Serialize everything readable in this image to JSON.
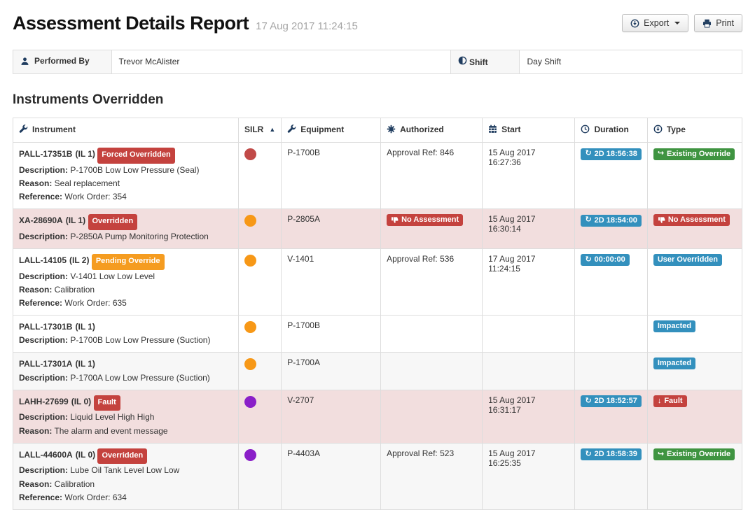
{
  "header": {
    "title": "Assessment Details Report",
    "timestamp": "17 Aug 2017 11:24:15",
    "export_label": "Export",
    "print_label": "Print"
  },
  "info": {
    "performed_by_label": "Performed By",
    "performed_by_value": "Trevor McAlister",
    "shift_label": "Shift",
    "shift_value": "Day Shift"
  },
  "section_title": "Instruments Overridden",
  "table": {
    "columns": [
      {
        "label": "Instrument",
        "icon": "wrench-icon"
      },
      {
        "label": "SILR",
        "icon": "sort-up-icon"
      },
      {
        "label": "Equipment",
        "icon": "wrench-icon"
      },
      {
        "label": "Authorized",
        "icon": "gear-icon"
      },
      {
        "label": "Start",
        "icon": "calendar-icon"
      },
      {
        "label": "Duration",
        "icon": "clock-icon"
      },
      {
        "label": "Type",
        "icon": "circle-down-icon"
      }
    ],
    "field_labels": {
      "description": "Description:",
      "reason": "Reason:",
      "reference": "Reference:"
    },
    "rows": [
      {
        "name": "PALL-17351B",
        "il": "(IL 1)",
        "status": {
          "label": "Forced Overridden",
          "style": "danger"
        },
        "description": "P-1700B Low Low Pressure (Seal)",
        "reason": "Seal replacement",
        "reference": "Work Order: 354",
        "silr": "red",
        "equipment": "P-1700B",
        "authorized": "Approval Ref: 846",
        "start": "15 Aug 2017 16:27:36",
        "duration": "2D 18:56:38",
        "type": {
          "label": "Existing Override",
          "style": "success",
          "icon": "share"
        },
        "row_style": "white"
      },
      {
        "name": "XA-28690A",
        "il": "(IL 1)",
        "status": {
          "label": "Overridden",
          "style": "danger"
        },
        "description": "P-2850A Pump Monitoring Protection",
        "silr": "orange",
        "equipment": "P-2805A",
        "authorized_badge": {
          "label": "No Assessment",
          "style": "danger",
          "icon": "thumbs-down"
        },
        "start": "15 Aug 2017 16:30:14",
        "duration": "2D 18:54:00",
        "type": {
          "label": "No Assessment",
          "style": "danger",
          "icon": "thumbs-down"
        },
        "row_style": "danger"
      },
      {
        "name": "LALL-14105",
        "il": "(IL 2)",
        "status": {
          "label": "Pending Override",
          "style": "warning"
        },
        "description": "V-1401 Low Low Level",
        "reason": "Calibration",
        "reference": "Work Order: 635",
        "silr": "orange",
        "equipment": "V-1401",
        "authorized": "Approval Ref: 536",
        "start": "17 Aug 2017 11:24:15",
        "duration": "00:00:00",
        "type": {
          "label": "User Overridden",
          "style": "info"
        },
        "row_style": "white"
      },
      {
        "name": "PALL-17301B",
        "il": "(IL 1)",
        "description": "P-1700B Low Low Pressure (Suction)",
        "silr": "orange",
        "equipment": "P-1700B",
        "type": {
          "label": "Impacted",
          "style": "info"
        },
        "row_style": "white"
      },
      {
        "name": "PALL-17301A",
        "il": "(IL 1)",
        "description": "P-1700A Low Low Pressure (Suction)",
        "silr": "orange",
        "equipment": "P-1700A",
        "type": {
          "label": "Impacted",
          "style": "info"
        },
        "row_style": "stripe"
      },
      {
        "name": "LAHH-27699",
        "il": "(IL 0)",
        "status": {
          "label": "Fault",
          "style": "danger"
        },
        "description": "Liquid Level High High",
        "reason": "The alarm and event message",
        "silr": "purple",
        "equipment": "V-2707",
        "start": "15 Aug 2017 16:31:17",
        "duration": "2D 18:52:57",
        "type": {
          "label": "Fault",
          "style": "danger",
          "icon": "arrow-down"
        },
        "row_style": "danger"
      },
      {
        "name": "LALL-44600A",
        "il": "(IL 0)",
        "status": {
          "label": "Overridden",
          "style": "danger"
        },
        "description": "Lube Oil Tank Level Low Low",
        "reason": "Calibration",
        "reference": "Work Order: 634",
        "silr": "purple",
        "equipment": "P-4403A",
        "authorized": "Approval Ref: 523",
        "start": "15 Aug 2017 16:25:35",
        "duration": "2D 18:58:39",
        "type": {
          "label": "Existing Override",
          "style": "success",
          "icon": "share"
        },
        "row_style": "stripe"
      }
    ]
  },
  "colors": {
    "badge_danger": "#c4423e",
    "badge_warning": "#f59c20",
    "badge_info": "#3390bd",
    "badge_success": "#3f9441",
    "danger_row_bg": "#f2dede",
    "stripe_row_bg": "#f7f7f7",
    "icon_navy": "#1f3c5f",
    "silr": {
      "red": "#c14a48",
      "orange": "#f79817",
      "purple": "#8a1fc8"
    }
  }
}
